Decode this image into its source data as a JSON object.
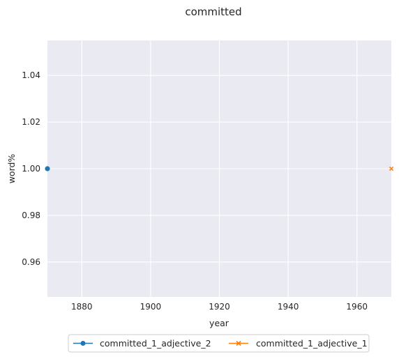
{
  "chart_data": {
    "type": "line",
    "title": "committed",
    "xlabel": "year",
    "ylabel": "word%",
    "xlim": [
      1870,
      1970
    ],
    "ylim": [
      0.945,
      1.055
    ],
    "xticks": [
      1880,
      1900,
      1920,
      1940,
      1960
    ],
    "yticks": [
      0.96,
      0.98,
      1.0,
      1.02,
      1.04
    ],
    "ytick_labels": [
      "0.96",
      "0.98",
      "1.00",
      "1.02",
      "1.04"
    ],
    "grid": true,
    "legend_position": "bottom-center",
    "series": [
      {
        "name": "committed_1_adjective_2",
        "color": "#1f77b4",
        "marker": "circle",
        "points": [
          {
            "x": 1870,
            "y": 1.0
          }
        ]
      },
      {
        "name": "committed_1_adjective_1",
        "color": "#ff7f0e",
        "marker": "x",
        "points": [
          {
            "x": 1970,
            "y": 1.0
          }
        ]
      }
    ]
  }
}
